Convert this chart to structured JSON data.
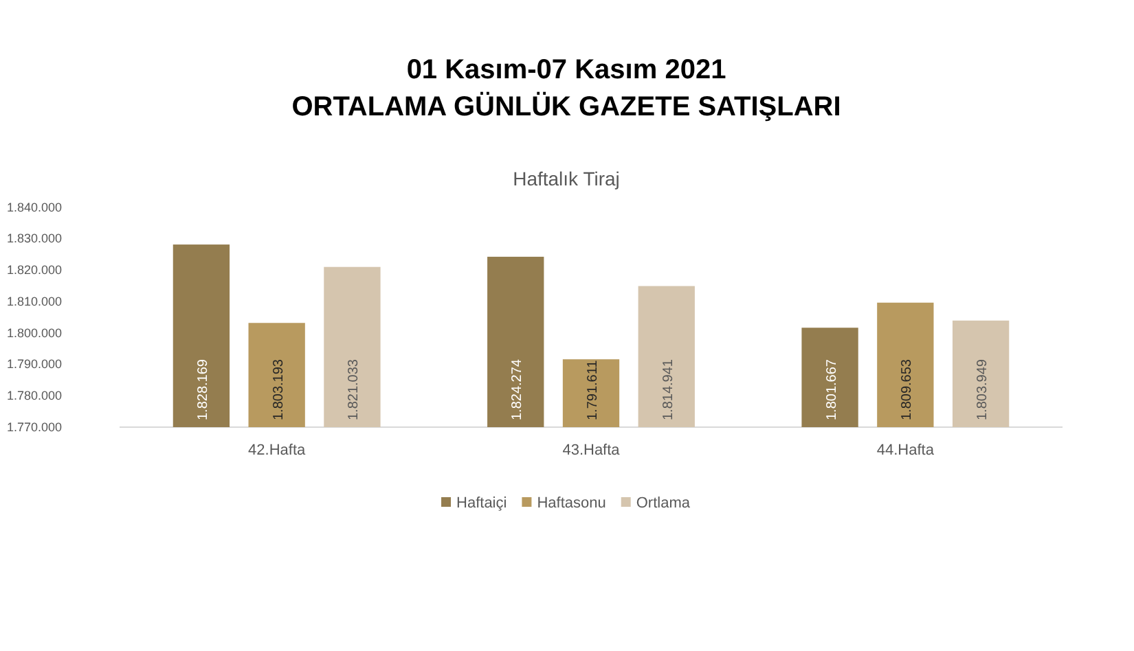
{
  "chart_data": {
    "type": "bar",
    "title": "01 Kasım-07 Kasım 2021\nORTALAMA GÜNLÜK GAZETE SATIŞLARI",
    "subtitle": "Haftalık Tiraj",
    "categories": [
      "42.Hafta",
      "43.Hafta",
      "44.Hafta"
    ],
    "series": [
      {
        "name": "Haftaiçi",
        "color": "#947d4f",
        "values": [
          1828169,
          1824274,
          1801667
        ],
        "value_labels": [
          "1.828.169",
          "1.824.274",
          "1.801.667"
        ]
      },
      {
        "name": "Haftasonu",
        "color": "#b89a5f",
        "values": [
          1803193,
          1791611,
          1809653
        ],
        "value_labels": [
          "1.803.193",
          "1.791.611",
          "1.809.653"
        ]
      },
      {
        "name": "Ortlama",
        "color": "#d5c5ae",
        "values": [
          1821033,
          1814941,
          1803949
        ],
        "value_labels": [
          "1.821.033",
          "1.814.941",
          "1.803.949"
        ]
      }
    ],
    "ylim": [
      1770000,
      1840000
    ],
    "yticks": [
      {
        "value": 1770000,
        "label": "1.770.000"
      },
      {
        "value": 1780000,
        "label": "1.780.000"
      },
      {
        "value": 1790000,
        "label": "1.790.000"
      },
      {
        "value": 1800000,
        "label": "1.800.000"
      },
      {
        "value": 1810000,
        "label": "1.810.000"
      },
      {
        "value": 1820000,
        "label": "1.820.000"
      },
      {
        "value": 1830000,
        "label": "1.830.000"
      },
      {
        "value": 1840000,
        "label": "1.840.000"
      }
    ],
    "grid": false,
    "legend": "bottom"
  }
}
